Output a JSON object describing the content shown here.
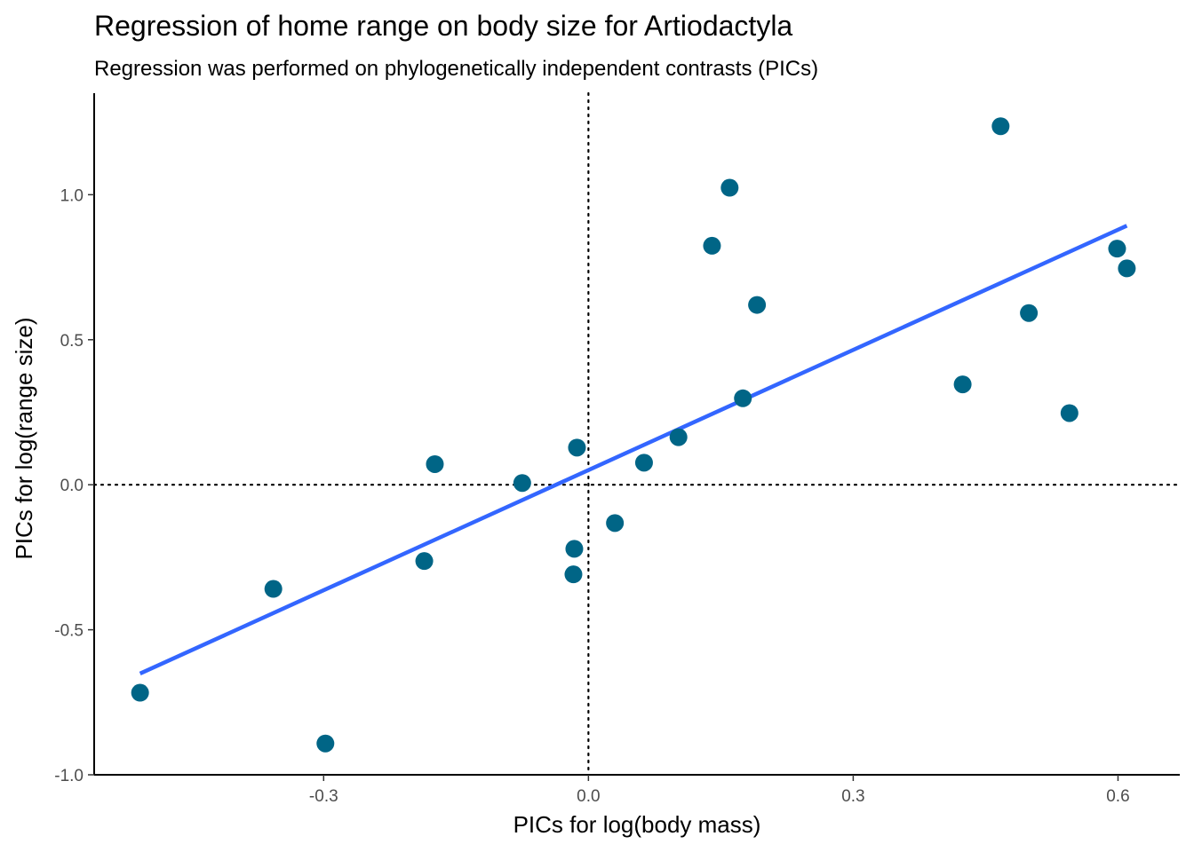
{
  "chart_data": {
    "type": "scatter",
    "title": "Regression of home range on body size for Artiodactyla",
    "subtitle": "Regression was performed on phylogenetically independent contrasts (PICs)",
    "xlabel": "PICs for log(body mass)",
    "ylabel": "PICs for log(range size)",
    "xlim": [
      -0.56,
      0.67
    ],
    "ylim": [
      -1.0,
      1.35
    ],
    "x_ticks": [
      {
        "value": -0.3,
        "label": "-0.3"
      },
      {
        "value": 0.0,
        "label": "0.0"
      },
      {
        "value": 0.3,
        "label": "0.3"
      },
      {
        "value": 0.6,
        "label": "0.6"
      }
    ],
    "y_ticks": [
      {
        "value": -1.0,
        "label": "-1.0"
      },
      {
        "value": -0.5,
        "label": "-0.5"
      },
      {
        "value": 0.0,
        "label": "0.0"
      },
      {
        "value": 0.5,
        "label": "0.5"
      },
      {
        "value": 1.0,
        "label": "1.0"
      }
    ],
    "grid": false,
    "reference_lines": {
      "x": 0,
      "y": 0,
      "style": "dotted"
    },
    "points": [
      {
        "x": -0.508,
        "y": -0.717
      },
      {
        "x": -0.357,
        "y": -0.359
      },
      {
        "x": -0.298,
        "y": -0.892
      },
      {
        "x": -0.186,
        "y": -0.263
      },
      {
        "x": -0.174,
        "y": 0.071
      },
      {
        "x": -0.075,
        "y": 0.006
      },
      {
        "x": -0.013,
        "y": 0.128
      },
      {
        "x": -0.016,
        "y": -0.221
      },
      {
        "x": -0.017,
        "y": -0.309
      },
      {
        "x": 0.03,
        "y": -0.132
      },
      {
        "x": 0.063,
        "y": 0.076
      },
      {
        "x": 0.102,
        "y": 0.164
      },
      {
        "x": 0.14,
        "y": 0.824
      },
      {
        "x": 0.16,
        "y": 1.024
      },
      {
        "x": 0.175,
        "y": 0.298
      },
      {
        "x": 0.191,
        "y": 0.62
      },
      {
        "x": 0.424,
        "y": 0.346
      },
      {
        "x": 0.467,
        "y": 1.236
      },
      {
        "x": 0.499,
        "y": 0.592
      },
      {
        "x": 0.545,
        "y": 0.247
      },
      {
        "x": 0.599,
        "y": 0.814
      },
      {
        "x": 0.61,
        "y": 0.746
      }
    ],
    "regression_line": {
      "x": [
        -0.508,
        0.61
      ],
      "y": [
        -0.651,
        0.893
      ]
    },
    "colors": {
      "points": "#006586",
      "regression": "#3366ff",
      "axis": "#000000",
      "tick_label": "#4d4d4d"
    }
  }
}
